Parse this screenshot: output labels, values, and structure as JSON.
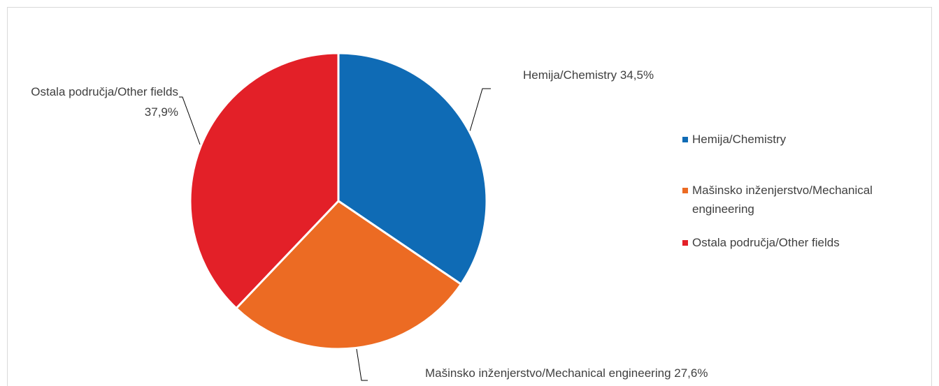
{
  "chart_data": {
    "type": "pie",
    "categories": [
      "Hemija/Chemistry",
      "Mašinsko inženjerstvo/Mechanical engineering",
      "Ostala područja/Other fields"
    ],
    "values": [
      34.5,
      27.6,
      37.9
    ],
    "value_labels": [
      "34,5%",
      "27,6%",
      "37,9%"
    ],
    "colors": [
      "#0f6bb5",
      "#ec6b23",
      "#e32028"
    ],
    "legend": "right"
  }
}
